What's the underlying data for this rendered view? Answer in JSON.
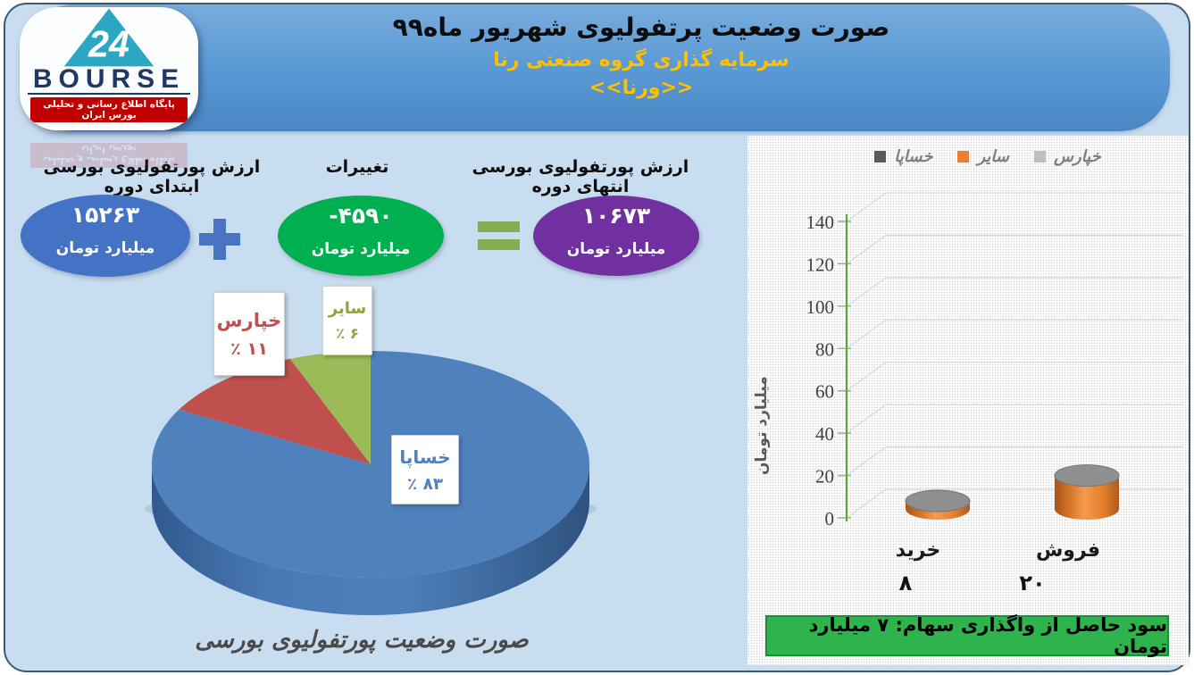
{
  "header": {
    "title": "صورت وضعیت پرتفولیوی شهریور ماه۹۹",
    "subtitle": "سرمایه گذاری گروه صنعتی رنا",
    "ticker": "<<ورنا>>",
    "bg_color": "#5b9bd5",
    "subtitle_color": "#ffc000"
  },
  "logo": {
    "brand": "BOURSE",
    "number": "24",
    "tagline": "پایگاه اطلاع رسانی و تحلیلی بورس ایران",
    "triangle_color": "#2ba7c4",
    "brand_color": "#1f3864",
    "tagline_bg": "#c00000"
  },
  "flow": {
    "begin": {
      "label": "ارزش پورتفولیوی بورسی ابتدای دوره",
      "value": "۱۵۲۶۳",
      "unit": "میلیارد تومان",
      "color": "#4472c4"
    },
    "change": {
      "label": "تغییرات",
      "value": "-۴۵۹۰",
      "unit": "میلیارد تومان",
      "color": "#00b050"
    },
    "end": {
      "label": "ارزش پورتفولیوی بورسی انتهای دوره",
      "value": "۱۰۶۷۳",
      "unit": "میلیارد تومان",
      "color": "#7030a0"
    },
    "plus_symbol": "+",
    "equals_symbol": "="
  },
  "chart_data": [
    {
      "type": "pie",
      "style": "3d",
      "labels": [
        "خساپا",
        "خپارس",
        "سایر"
      ],
      "values": [
        83,
        11,
        6
      ],
      "value_displays": [
        "۸۳",
        "۱۱",
        "۶"
      ],
      "percent_sign": "٪",
      "colors": [
        "#4f81bd",
        "#c0504d",
        "#9bbb59"
      ],
      "label_text_colors": [
        "#4f81bd",
        "#c0504d",
        "#8aa53f"
      ],
      "start_angle_deg": 0,
      "legend_position": "none"
    },
    {
      "type": "bar",
      "style": "3d-cylinder",
      "categories": [
        "خرید",
        "فروش"
      ],
      "values": [
        8,
        20
      ],
      "value_displays": [
        "۸",
        "۲۰"
      ],
      "bar_color": "#ed7d31",
      "ylabel": "میلیارد تومان",
      "ylim": [
        0,
        140
      ],
      "yticks": [
        0,
        20,
        40,
        60,
        80,
        100,
        120,
        140
      ],
      "grid": true,
      "legend_position": "top",
      "legend": [
        {
          "label": "خساپا",
          "color": "#595959"
        },
        {
          "label": "سایر",
          "color": "#ed7d31"
        },
        {
          "label": "خپارس",
          "color": "#bfbfbf"
        }
      ]
    }
  ],
  "note": {
    "text": "سود حاصل از واگذاری سهام: ۷ میلیارد تومان",
    "bg_color": "#2eb34d"
  },
  "footer": {
    "caption": "صورت وضعیت پورتفولیوی بورسی"
  }
}
